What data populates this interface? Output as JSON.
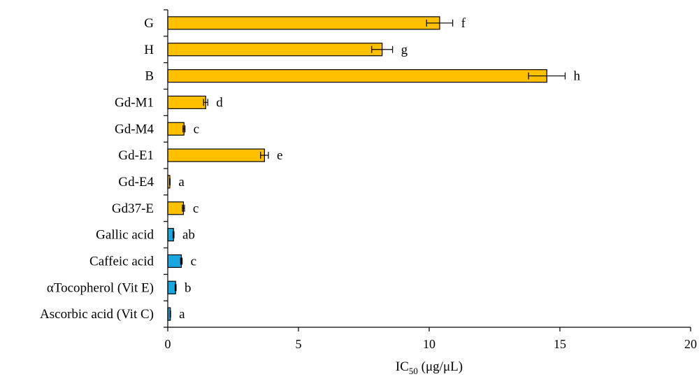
{
  "chart_data": {
    "type": "bar",
    "orientation": "horizontal",
    "categories": [
      "G",
      "H",
      "B",
      "Gd-M1",
      "Gd-M4",
      "Gd-E1",
      "Gd-E4",
      "Gd37-E",
      "Gallic acid",
      "Caffeic acid",
      "αTocopherol (Vit E)",
      "Ascorbic acid  (Vit C)"
    ],
    "values": [
      10.4,
      8.2,
      14.5,
      1.45,
      0.62,
      3.7,
      0.08,
      0.6,
      0.22,
      0.52,
      0.3,
      0.1
    ],
    "errors": [
      0.5,
      0.4,
      0.7,
      0.08,
      0.04,
      0.15,
      0.01,
      0.04,
      0.02,
      0.03,
      0.02,
      0.01
    ],
    "significance": [
      "f",
      "g",
      "h",
      "d",
      "c",
      "e",
      "a",
      "c",
      "ab",
      "c",
      "b",
      "a"
    ],
    "colors": [
      "#FFC000",
      "#FFC000",
      "#FFC000",
      "#FFC000",
      "#FFC000",
      "#FFC000",
      "#FFC000",
      "#FFC000",
      "#1AA7E0",
      "#1AA7E0",
      "#1AA7E0",
      "#1AA7E0"
    ],
    "xlabel": {
      "base": "IC",
      "sub": "50",
      "rest": " (μg/μL)"
    },
    "xlim": [
      0,
      20
    ],
    "xticks": [
      0,
      5,
      10,
      15,
      20
    ],
    "grid": false,
    "legend": "none"
  }
}
